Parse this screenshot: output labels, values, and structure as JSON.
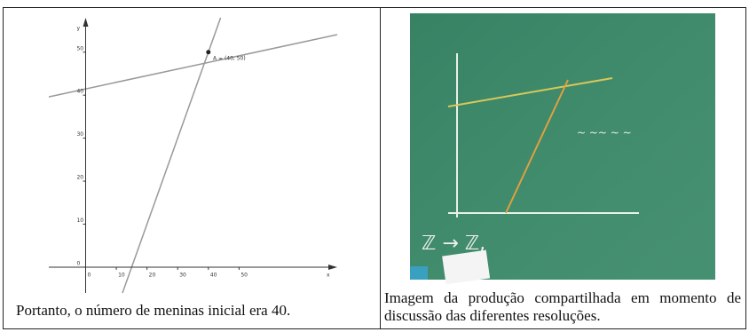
{
  "table": {
    "cells": [
      {
        "figure": {
          "x_label": "x",
          "y_label": "y",
          "xlim": [
            -12,
            82
          ],
          "ylim": [
            -6,
            58
          ],
          "xticks": [
            0,
            10,
            20,
            30,
            40,
            50
          ],
          "yticks": [
            0,
            10,
            20,
            30,
            40,
            50
          ],
          "point_label": "A = (40, 50)"
        },
        "caption": "Portanto, o número de meninas inicial era 40."
      },
      {
        "caption": "Imagem da produção compartilhada em momento de discussão das diferentes resoluções."
      }
    ]
  }
}
